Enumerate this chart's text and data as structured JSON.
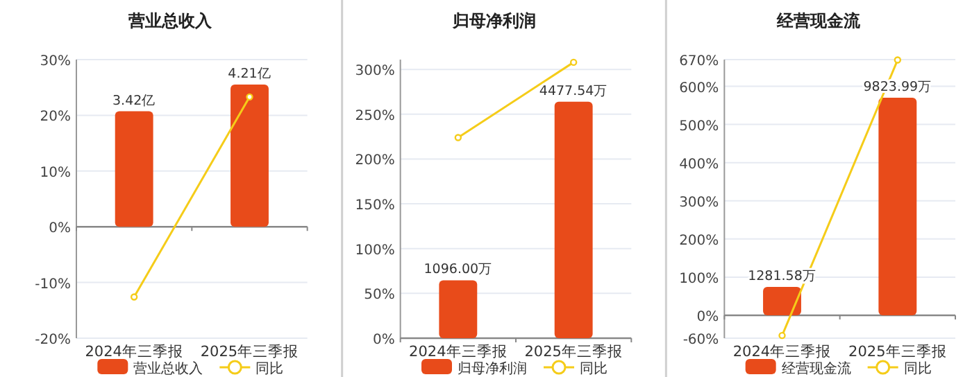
{
  "chart_data": [
    {
      "type": "bar",
      "title": "营业总收入",
      "categories": [
        "2024年三季报",
        "2025年三季报"
      ],
      "series": [
        {
          "name": "营业总收入",
          "axis": "y2",
          "color": "#e84b1a",
          "values": [
            3.42,
            4.21
          ],
          "value_labels": [
            "3.42亿",
            "4.21亿"
          ]
        },
        {
          "name": "同比",
          "type": "line",
          "color": "#f5cc19",
          "values": [
            -12.6,
            23.3
          ]
        }
      ],
      "ylim": [
        -20,
        30
      ],
      "yticks": [
        {
          "value": -20,
          "label": "-20%"
        },
        {
          "value": -10,
          "label": "-10%"
        },
        {
          "value": 0,
          "label": "0%"
        },
        {
          "value": 10,
          "label": "10%"
        },
        {
          "value": 20,
          "label": "20%"
        },
        {
          "value": 30,
          "label": "30%"
        }
      ],
      "y2lim": [
        -3.3,
        4.95
      ],
      "grid": "y",
      "legend": "bottom",
      "marker": "circle"
    },
    {
      "type": "bar",
      "title": "归母净利润",
      "categories": [
        "2024年三季报",
        "2025年三季报"
      ],
      "series": [
        {
          "name": "归母净利润",
          "axis": "y2",
          "color": "#e84b1a",
          "values": [
            1096.0,
            4477.54
          ],
          "value_labels": [
            "1096.00万",
            "4477.54万"
          ]
        },
        {
          "name": "同比",
          "type": "line",
          "color": "#f5cc19",
          "values": [
            224,
            308
          ]
        }
      ],
      "ylim": [
        0,
        311
      ],
      "yticks": [
        {
          "value": 0,
          "label": "0%"
        },
        {
          "value": 50,
          "label": "50%"
        },
        {
          "value": 100,
          "label": "100%"
        },
        {
          "value": 150,
          "label": "150%"
        },
        {
          "value": 200,
          "label": "200%"
        },
        {
          "value": 250,
          "label": "250%"
        },
        {
          "value": 300,
          "label": "300%"
        }
      ],
      "y2lim": [
        0,
        5275
      ],
      "grid": "y",
      "legend": "bottom",
      "marker": "circle"
    },
    {
      "type": "bar",
      "title": "经营现金流",
      "categories": [
        "2024年三季报",
        "2025年三季报"
      ],
      "series": [
        {
          "name": "经营现金流",
          "axis": "y2",
          "color": "#e84b1a",
          "values": [
            1281.58,
            9823.99
          ],
          "value_labels": [
            "1281.58万",
            "9823.99万"
          ]
        },
        {
          "name": "同比",
          "type": "line",
          "color": "#f5cc19",
          "values": [
            -53,
            669
          ]
        }
      ],
      "ylim": [
        -60,
        670
      ],
      "yticks": [
        {
          "value": -60,
          "label": "-60%"
        },
        {
          "value": 0,
          "label": "0%"
        },
        {
          "value": 100,
          "label": "100%"
        },
        {
          "value": 200,
          "label": "200%"
        },
        {
          "value": 300,
          "label": "300%"
        },
        {
          "value": 400,
          "label": "400%"
        },
        {
          "value": 500,
          "label": "500%"
        },
        {
          "value": 600,
          "label": "600%"
        },
        {
          "value": 670,
          "label": "670%"
        }
      ],
      "y2lim": [
        -1034,
        11547
      ],
      "grid": "y",
      "legend": "bottom",
      "marker": "circle"
    }
  ]
}
